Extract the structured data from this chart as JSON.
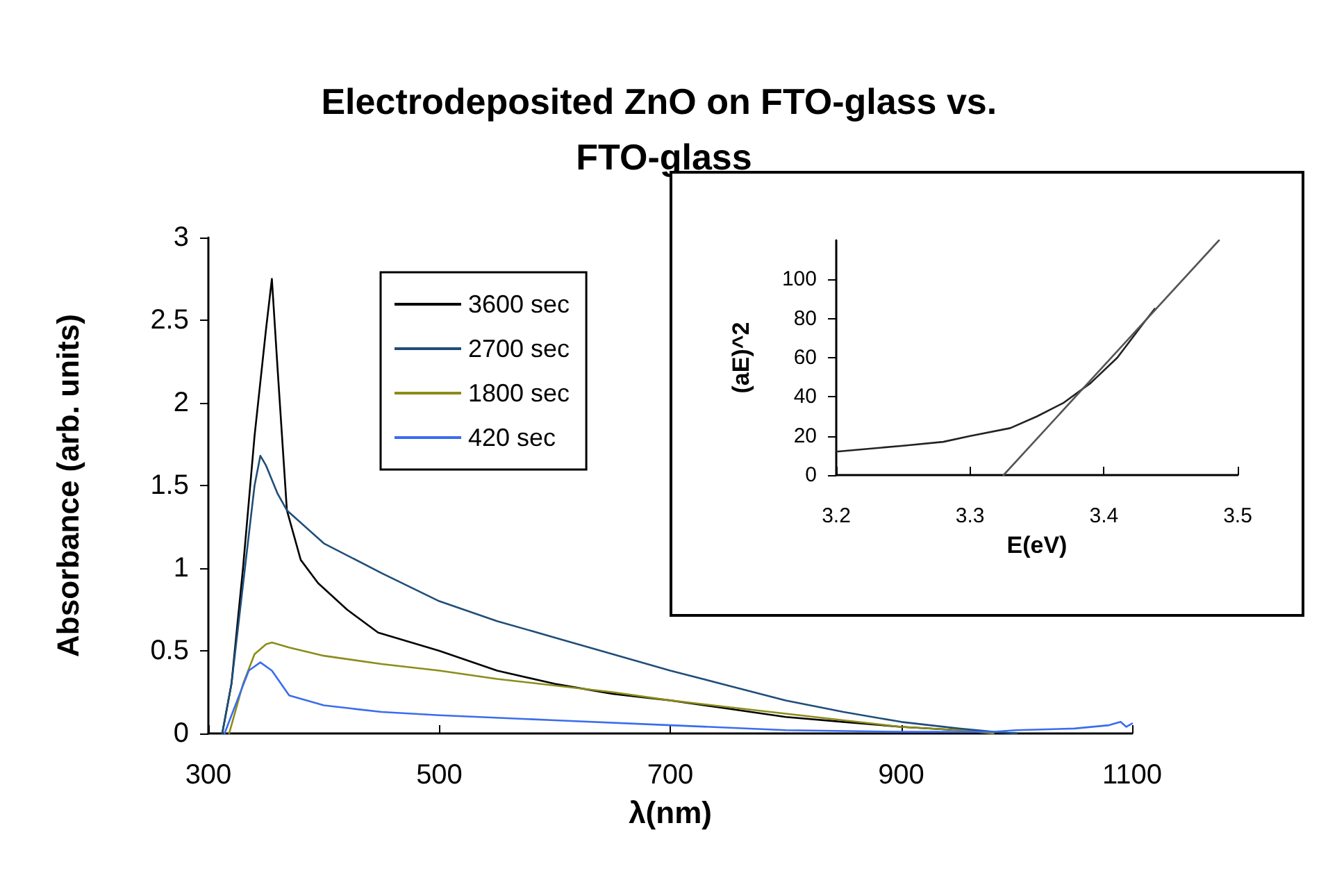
{
  "chart_data": [
    {
      "type": "line",
      "title": "Electrodeposited ZnO on FTO-glass vs. FTO-glass",
      "xlabel": "λ(nm)",
      "ylabel": "Absorbance (arb. units)",
      "xlim": [
        300,
        1100
      ],
      "xticks": [
        300,
        500,
        700,
        900,
        1100
      ],
      "ylim": [
        0,
        3
      ],
      "yticks": [
        0,
        0.5,
        1,
        1.5,
        2,
        2.5,
        3
      ],
      "grid": false,
      "legend": "top left",
      "marker": "none",
      "line_style": "solid",
      "series": [
        {
          "name": "3600 sec",
          "color": "#000000",
          "x": [
            312,
            320,
            330,
            340,
            350,
            355,
            360,
            368,
            380,
            395,
            420,
            447,
            500,
            550,
            600,
            650,
            700,
            750,
            800,
            850,
            900,
            950,
            1000
          ],
          "values": [
            0,
            0.3,
            1.0,
            1.8,
            2.45,
            2.75,
            2.2,
            1.35,
            1.05,
            0.91,
            0.75,
            0.61,
            0.5,
            0.38,
            0.3,
            0.24,
            0.2,
            0.15,
            0.1,
            0.07,
            0.04,
            0.02,
            0
          ]
        },
        {
          "name": "2700 sec",
          "color": "#1f4e79",
          "x": [
            312,
            320,
            330,
            340,
            345,
            350,
            360,
            368,
            400,
            450,
            500,
            550,
            600,
            650,
            700,
            750,
            800,
            850,
            900,
            950,
            980,
            1000
          ],
          "values": [
            0,
            0.3,
            0.9,
            1.5,
            1.68,
            1.62,
            1.45,
            1.35,
            1.15,
            0.97,
            0.8,
            0.68,
            0.58,
            0.48,
            0.38,
            0.29,
            0.2,
            0.13,
            0.07,
            0.03,
            0.01,
            0
          ]
        },
        {
          "name": "1800 sec",
          "color": "#8c8c1a",
          "x": [
            318,
            330,
            340,
            350,
            355,
            370,
            400,
            450,
            500,
            550,
            600,
            650,
            700,
            750,
            800,
            850,
            900,
            950,
            980
          ],
          "values": [
            0,
            0.3,
            0.48,
            0.54,
            0.55,
            0.52,
            0.47,
            0.42,
            0.38,
            0.33,
            0.29,
            0.25,
            0.2,
            0.16,
            0.12,
            0.08,
            0.04,
            0.02,
            0
          ]
        },
        {
          "name": "420 sec",
          "color": "#3b6cf0",
          "x": [
            314,
            325,
            335,
            345,
            355,
            370,
            400,
            450,
            500,
            600,
            700,
            800,
            900,
            980,
            1000,
            1050,
            1080,
            1090,
            1095,
            1100
          ],
          "values": [
            0,
            0.2,
            0.38,
            0.43,
            0.38,
            0.23,
            0.17,
            0.13,
            0.11,
            0.08,
            0.05,
            0.02,
            0.01,
            0.01,
            0.02,
            0.03,
            0.05,
            0.07,
            0.04,
            0.06
          ]
        }
      ]
    },
    {
      "type": "line",
      "xlabel": "E(eV)",
      "ylabel": "(aE)^2",
      "xlim": [
        3.2,
        3.5
      ],
      "xticks": [
        3.2,
        3.3,
        3.4,
        3.5
      ],
      "ylim": [
        0,
        120
      ],
      "yticks": [
        0,
        20,
        40,
        60,
        80,
        100
      ],
      "grid": false,
      "legend": false,
      "marker": "none",
      "line_style": "solid",
      "series": [
        {
          "color": "#222222",
          "x": [
            3.2,
            3.25,
            3.28,
            3.3,
            3.33,
            3.35,
            3.37,
            3.39,
            3.41,
            3.43,
            3.438
          ],
          "values": [
            12,
            15,
            17,
            20,
            24,
            30,
            37,
            47,
            60,
            78,
            85
          ]
        },
        {
          "color": "#555555",
          "x": [
            3.325,
            3.486
          ],
          "values": [
            0,
            120
          ]
        }
      ]
    }
  ]
}
